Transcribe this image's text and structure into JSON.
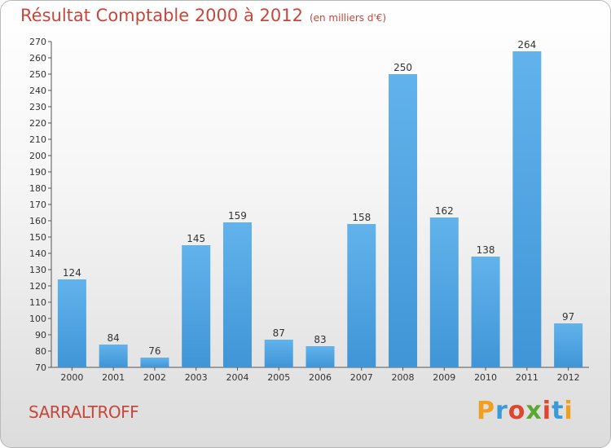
{
  "header": {
    "title": "Résultat Comptable 2000 à 2012",
    "subtitle": "(en milliers d'€)"
  },
  "footer": {
    "commune": "SARRALTROFF",
    "logo_letters": [
      "P",
      "r",
      "o",
      "x",
      "i",
      "t",
      "i"
    ],
    "logo_colors": [
      "#f0a020",
      "#3a9ad8",
      "#e0452f",
      "#5aa832",
      "#e0452f",
      "#3a9ad8",
      "#f0a020"
    ]
  },
  "colors": {
    "bar": "#3f95d6",
    "bar_light": "#62b3ec",
    "text_accent": "#c8463a"
  },
  "chart_data": {
    "type": "bar",
    "title": "Résultat Comptable 2000 à 2012",
    "subtitle": "(en milliers d'€)",
    "xlabel": "",
    "ylabel": "",
    "categories": [
      "2000",
      "2001",
      "2002",
      "2003",
      "2004",
      "2005",
      "2006",
      "2007",
      "2008",
      "2009",
      "2010",
      "2011",
      "2012"
    ],
    "values": [
      124,
      84,
      76,
      145,
      159,
      87,
      83,
      158,
      250,
      162,
      138,
      264,
      97
    ],
    "ylim": [
      70,
      270
    ],
    "ytick_step": 10,
    "grid": false,
    "legend": "none"
  }
}
